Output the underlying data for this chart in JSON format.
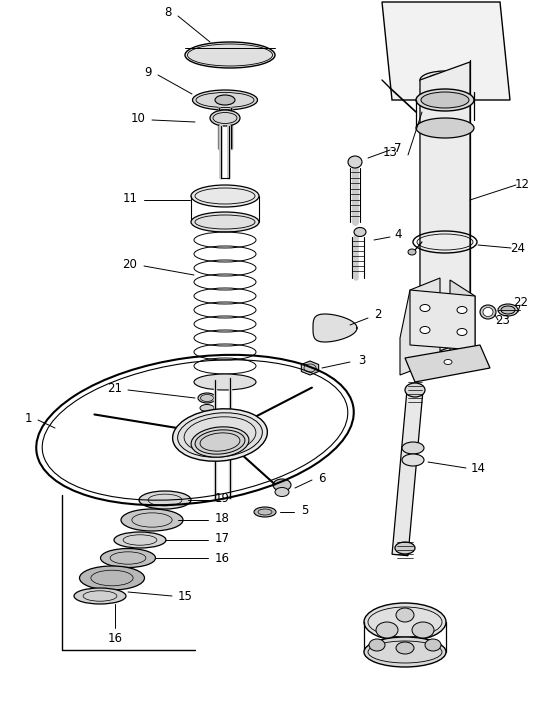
{
  "bg_color": "#ffffff",
  "line_color": "#000000",
  "fig_width": 5.4,
  "fig_height": 7.08,
  "dpi": 100
}
